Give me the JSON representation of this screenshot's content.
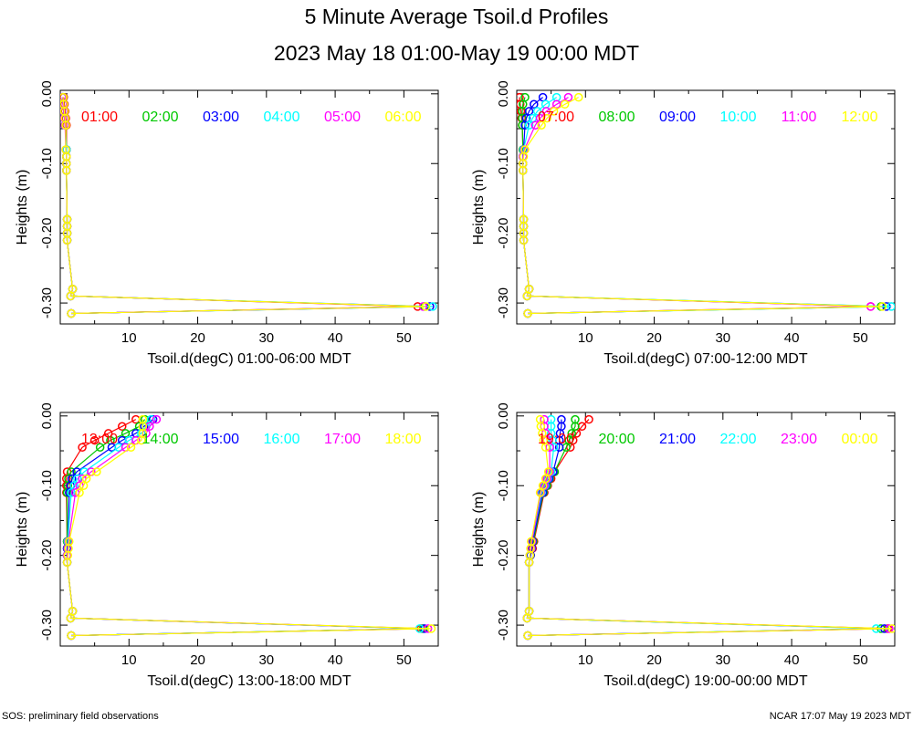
{
  "title": "5 Minute Average Tsoil.d Profiles",
  "subtitle": "2023 May 18 01:00-May 19 00:00 MDT",
  "footer_left": "SOS: preliminary field observations",
  "footer_right": "NCAR 17:07 May 19 2023 MDT",
  "colors": [
    "#ff0000",
    "#00c800",
    "#0000ff",
    "#00ffff",
    "#ff00ff",
    "#ffff00"
  ],
  "chart_data": [
    {
      "type": "line",
      "xlabel": "Tsoil.d(degC) 01:00-06:00 MDT",
      "ylabel": "Heights (m)",
      "xlim": [
        0,
        55
      ],
      "ylim": [
        -0.33,
        0.005
      ],
      "xticks": [
        10,
        20,
        30,
        40,
        50
      ],
      "yticks": [
        0.0,
        -0.1,
        -0.2,
        -0.3
      ],
      "ytick_labels": [
        "0.00",
        "-0.10",
        "-0.20",
        "-0.30"
      ],
      "grid": false,
      "legend_placement": "top",
      "heights": [
        -0.005,
        -0.015,
        -0.025,
        -0.035,
        -0.045,
        -0.08,
        -0.09,
        -0.1,
        -0.11,
        -0.18,
        -0.19,
        -0.2,
        -0.21,
        -0.28,
        -0.29,
        -0.305,
        -0.315
      ],
      "series": [
        {
          "name": "01:00",
          "x": [
            0.5,
            0.6,
            0.7,
            0.8,
            0.9,
            0.9,
            0.9,
            0.9,
            0.9,
            1.0,
            1.0,
            1.0,
            1.0,
            1.8,
            1.5,
            52.0,
            1.6
          ]
        },
        {
          "name": "02:00",
          "x": [
            0.4,
            0.5,
            0.6,
            0.7,
            0.8,
            0.9,
            0.9,
            0.9,
            0.9,
            1.0,
            1.0,
            1.0,
            1.0,
            1.8,
            1.5,
            53.0,
            1.6
          ]
        },
        {
          "name": "03:00",
          "x": [
            0.3,
            0.4,
            0.5,
            0.6,
            0.7,
            0.9,
            0.9,
            0.9,
            0.9,
            1.0,
            1.0,
            1.0,
            1.0,
            1.8,
            1.5,
            53.8,
            1.6
          ]
        },
        {
          "name": "04:00",
          "x": [
            0.3,
            0.4,
            0.5,
            0.6,
            0.7,
            0.9,
            0.9,
            0.9,
            0.9,
            1.0,
            1.0,
            1.0,
            1.0,
            1.8,
            1.5,
            54.2,
            1.6
          ]
        },
        {
          "name": "05:00",
          "x": [
            0.3,
            0.4,
            0.5,
            0.6,
            0.7,
            0.8,
            0.9,
            0.9,
            0.9,
            1.0,
            1.0,
            1.0,
            1.0,
            1.8,
            1.5,
            52.8,
            1.6
          ]
        },
        {
          "name": "06:00",
          "x": [
            0.4,
            0.5,
            0.6,
            0.7,
            0.8,
            0.8,
            0.9,
            0.9,
            0.9,
            1.0,
            1.0,
            1.0,
            1.0,
            1.8,
            1.5,
            53.2,
            1.6
          ]
        }
      ]
    },
    {
      "type": "line",
      "xlabel": "Tsoil.d(degC) 07:00-12:00 MDT",
      "ylabel": "Heights (m)",
      "xlim": [
        0,
        55
      ],
      "ylim": [
        -0.33,
        0.005
      ],
      "xticks": [
        10,
        20,
        30,
        40,
        50
      ],
      "yticks": [
        0.0,
        -0.1,
        -0.2,
        -0.3
      ],
      "ytick_labels": [
        "0.00",
        "-0.10",
        "-0.20",
        "-0.30"
      ],
      "grid": false,
      "legend_placement": "top",
      "heights": [
        -0.005,
        -0.015,
        -0.025,
        -0.035,
        -0.045,
        -0.08,
        -0.09,
        -0.1,
        -0.11,
        -0.18,
        -0.19,
        -0.2,
        -0.21,
        -0.28,
        -0.29,
        -0.305,
        -0.315
      ],
      "series": [
        {
          "name": "07:00",
          "x": [
            0.4,
            0.5,
            0.6,
            0.7,
            0.8,
            0.9,
            0.9,
            0.9,
            0.9,
            1.0,
            1.0,
            1.0,
            1.0,
            1.8,
            1.5,
            51.5,
            1.6
          ]
        },
        {
          "name": "08:00",
          "x": [
            1.2,
            0.9,
            0.8,
            0.8,
            0.8,
            0.9,
            0.9,
            0.9,
            0.9,
            1.0,
            1.0,
            1.0,
            1.0,
            1.8,
            1.5,
            53.0,
            1.6
          ]
        },
        {
          "name": "09:00",
          "x": [
            3.8,
            2.5,
            1.8,
            1.4,
            1.2,
            1.0,
            0.9,
            0.9,
            0.9,
            1.0,
            1.0,
            1.0,
            1.0,
            1.8,
            1.5,
            53.8,
            1.6
          ]
        },
        {
          "name": "10:00",
          "x": [
            5.8,
            4.2,
            3.0,
            2.3,
            1.8,
            1.0,
            0.9,
            0.9,
            0.9,
            1.0,
            1.0,
            1.0,
            1.0,
            1.8,
            1.5,
            54.5,
            1.6
          ]
        },
        {
          "name": "11:00",
          "x": [
            7.5,
            5.8,
            4.3,
            3.4,
            2.7,
            1.1,
            0.9,
            0.9,
            0.9,
            1.0,
            1.0,
            1.0,
            1.0,
            1.8,
            1.5,
            51.5,
            1.6
          ]
        },
        {
          "name": "12:00",
          "x": [
            9.0,
            7.0,
            5.4,
            4.4,
            3.6,
            1.2,
            1.0,
            0.9,
            0.9,
            1.0,
            1.0,
            1.0,
            1.0,
            1.8,
            1.5,
            53.2,
            1.6
          ]
        }
      ]
    },
    {
      "type": "line",
      "xlabel": "Tsoil.d(degC) 13:00-18:00 MDT",
      "ylabel": "Heights (m)",
      "xlim": [
        0,
        55
      ],
      "ylim": [
        -0.33,
        0.005
      ],
      "xticks": [
        10,
        20,
        30,
        40,
        50
      ],
      "yticks": [
        0.0,
        -0.1,
        -0.2,
        -0.3
      ],
      "ytick_labels": [
        "0.00",
        "-0.10",
        "-0.20",
        "-0.30"
      ],
      "grid": false,
      "legend_placement": "top",
      "heights": [
        -0.005,
        -0.015,
        -0.025,
        -0.035,
        -0.045,
        -0.08,
        -0.09,
        -0.1,
        -0.11,
        -0.18,
        -0.19,
        -0.2,
        -0.21,
        -0.28,
        -0.29,
        -0.305,
        -0.315
      ],
      "series": [
        {
          "name": "13:00",
          "x": [
            11.0,
            9.0,
            7.0,
            5.0,
            3.2,
            1.0,
            0.9,
            0.9,
            0.9,
            1.0,
            1.0,
            1.0,
            1.0,
            1.8,
            1.5,
            52.5,
            1.6
          ]
        },
        {
          "name": "14:00",
          "x": [
            12.3,
            11.5,
            9.5,
            7.3,
            5.8,
            1.6,
            1.2,
            1.1,
            1.0,
            1.0,
            1.0,
            1.0,
            1.0,
            1.8,
            1.5,
            52.8,
            1.6
          ]
        },
        {
          "name": "15:00",
          "x": [
            13.5,
            12.2,
            11.0,
            9.0,
            7.5,
            2.4,
            1.7,
            1.5,
            1.3,
            1.1,
            1.0,
            1.0,
            1.0,
            1.8,
            1.5,
            53.0,
            1.6
          ]
        },
        {
          "name": "16:00",
          "x": [
            13.2,
            12.5,
            11.8,
            10.0,
            8.5,
            3.5,
            2.5,
            2.0,
            1.6,
            1.1,
            1.1,
            1.0,
            1.0,
            1.8,
            1.5,
            52.3,
            1.6
          ]
        },
        {
          "name": "17:00",
          "x": [
            14.0,
            13.0,
            12.5,
            11.0,
            9.5,
            4.5,
            3.2,
            2.8,
            2.2,
            1.2,
            1.1,
            1.0,
            1.0,
            1.8,
            1.5,
            53.5,
            1.6
          ]
        },
        {
          "name": "18:00",
          "x": [
            12.0,
            12.0,
            12.0,
            11.8,
            10.3,
            5.3,
            3.8,
            3.4,
            2.8,
            1.3,
            1.2,
            1.1,
            1.0,
            1.8,
            1.5,
            54.0,
            1.6
          ]
        }
      ]
    },
    {
      "type": "line",
      "xlabel": "Tsoil.d(degC) 19:00-00:00 MDT",
      "ylabel": "Heights (m)",
      "xlim": [
        0,
        55
      ],
      "ylim": [
        -0.33,
        0.005
      ],
      "xticks": [
        10,
        20,
        30,
        40,
        50
      ],
      "yticks": [
        0.0,
        -0.1,
        -0.2,
        -0.3
      ],
      "ytick_labels": [
        "0.00",
        "-0.10",
        "-0.20",
        "-0.30"
      ],
      "grid": false,
      "legend_placement": "top",
      "heights": [
        -0.005,
        -0.015,
        -0.025,
        -0.035,
        -0.045,
        -0.08,
        -0.09,
        -0.1,
        -0.11,
        -0.18,
        -0.19,
        -0.2,
        -0.21,
        -0.28,
        -0.29,
        -0.305,
        -0.315
      ],
      "series": [
        {
          "name": "19:00",
          "x": [
            10.5,
            9.5,
            8.7,
            8.2,
            7.8,
            5.5,
            5.0,
            4.5,
            4.0,
            2.5,
            2.3,
            2.0,
            1.8,
            1.8,
            1.5,
            54.0,
            1.6
          ]
        },
        {
          "name": "20:00",
          "x": [
            8.5,
            8.5,
            8.0,
            7.6,
            7.2,
            5.5,
            4.8,
            4.4,
            3.9,
            2.4,
            2.2,
            2.0,
            1.8,
            1.8,
            1.5,
            53.0,
            1.6
          ]
        },
        {
          "name": "21:00",
          "x": [
            6.5,
            6.5,
            6.3,
            6.2,
            6.2,
            5.3,
            4.7,
            4.2,
            3.8,
            2.3,
            2.2,
            2.0,
            1.8,
            1.8,
            1.5,
            53.5,
            1.6
          ]
        },
        {
          "name": "22:00",
          "x": [
            5.0,
            5.0,
            5.0,
            5.2,
            5.4,
            5.0,
            4.5,
            4.1,
            3.6,
            2.2,
            2.1,
            1.9,
            1.8,
            1.8,
            1.5,
            52.3,
            1.6
          ]
        },
        {
          "name": "23:00",
          "x": [
            4.0,
            4.0,
            4.2,
            4.4,
            4.8,
            4.8,
            4.4,
            4.0,
            3.5,
            2.2,
            2.1,
            1.9,
            1.8,
            1.8,
            1.5,
            54.2,
            1.6
          ]
        },
        {
          "name": "00:00",
          "x": [
            3.4,
            3.5,
            3.7,
            3.9,
            4.2,
            4.6,
            4.2,
            3.8,
            3.4,
            2.1,
            2.0,
            1.9,
            1.8,
            1.8,
            1.5,
            54.6,
            1.6
          ]
        }
      ]
    }
  ]
}
